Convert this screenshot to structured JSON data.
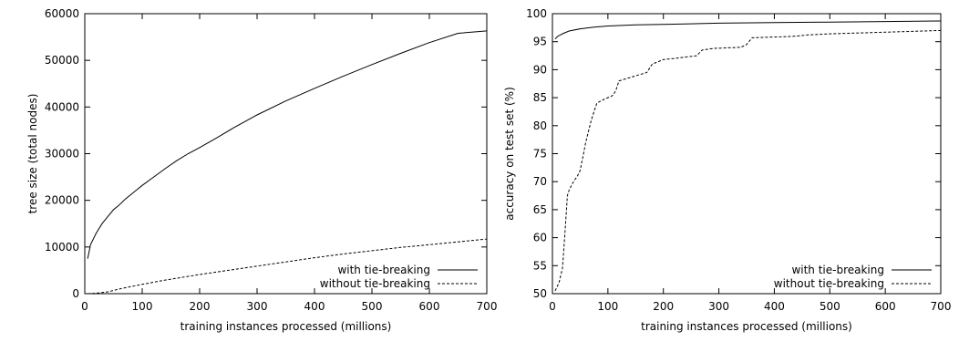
{
  "chart_data": [
    {
      "type": "line",
      "xlabel": "training instances processed (millions)",
      "ylabel": "tree size (total nodes)",
      "xlim": [
        0,
        700
      ],
      "ylim": [
        0,
        60000
      ],
      "xticks": [
        0,
        100,
        200,
        300,
        400,
        500,
        600,
        700
      ],
      "yticks": [
        0,
        10000,
        20000,
        30000,
        40000,
        50000,
        60000
      ],
      "grid": false,
      "legend_position": "bottom-right",
      "series": [
        {
          "name": "with tie-breaking",
          "style": "solid",
          "x": [
            5,
            10,
            20,
            30,
            40,
            50,
            60,
            70,
            80,
            90,
            100,
            120,
            140,
            160,
            180,
            200,
            230,
            260,
            300,
            350,
            400,
            450,
            500,
            550,
            600,
            650,
            700
          ],
          "y": [
            7500,
            10500,
            13000,
            15000,
            16500,
            18000,
            19000,
            20200,
            21200,
            22200,
            23200,
            25000,
            26800,
            28500,
            30000,
            31300,
            33400,
            35600,
            38300,
            41300,
            44000,
            46600,
            49100,
            51500,
            53800,
            55800,
            56300
          ]
        },
        {
          "name": "without tie-breaking",
          "style": "dashed",
          "x": [
            5,
            20,
            40,
            60,
            80,
            100,
            130,
            160,
            200,
            250,
            300,
            350,
            400,
            450,
            500,
            550,
            600,
            650,
            700
          ],
          "y": [
            0,
            100,
            400,
            1000,
            1500,
            2000,
            2700,
            3300,
            4100,
            5000,
            5900,
            6800,
            7700,
            8500,
            9200,
            9900,
            10500,
            11100,
            11700
          ]
        }
      ]
    },
    {
      "type": "line",
      "xlabel": "training instances processed (millions)",
      "ylabel": "accuracy on test set (%)",
      "xlim": [
        0,
        700
      ],
      "ylim": [
        50,
        100
      ],
      "xticks": [
        0,
        100,
        200,
        300,
        400,
        500,
        600,
        700
      ],
      "yticks": [
        50,
        55,
        60,
        65,
        70,
        75,
        80,
        85,
        90,
        95,
        100
      ],
      "grid": false,
      "legend_position": "bottom-right",
      "series": [
        {
          "name": "with tie-breaking",
          "style": "solid",
          "x": [
            5,
            10,
            20,
            30,
            50,
            75,
            100,
            150,
            200,
            300,
            400,
            500,
            600,
            700
          ],
          "y": [
            95.5,
            96.0,
            96.5,
            96.9,
            97.3,
            97.6,
            97.8,
            98.0,
            98.1,
            98.3,
            98.4,
            98.5,
            98.6,
            98.7
          ]
        },
        {
          "name": "without tie-breaking",
          "style": "dashed",
          "x": [
            5,
            12,
            18,
            22,
            27,
            30,
            38,
            45,
            50,
            55,
            60,
            70,
            80,
            85,
            95,
            105,
            110,
            115,
            120,
            140,
            160,
            170,
            180,
            200,
            220,
            260,
            270,
            290,
            340,
            350,
            360,
            420,
            440,
            460,
            500,
            600,
            700
          ],
          "y": [
            50.5,
            52.0,
            54.5,
            60.0,
            67.5,
            68.5,
            70.0,
            71.0,
            72.0,
            74.5,
            77.0,
            81.0,
            84.0,
            84.3,
            84.8,
            85.2,
            85.5,
            86.5,
            88.0,
            88.6,
            89.2,
            89.5,
            91.0,
            91.8,
            92.0,
            92.5,
            93.5,
            93.8,
            94.0,
            94.5,
            95.7,
            95.9,
            96.0,
            96.2,
            96.4,
            96.7,
            97.0
          ]
        }
      ]
    }
  ]
}
